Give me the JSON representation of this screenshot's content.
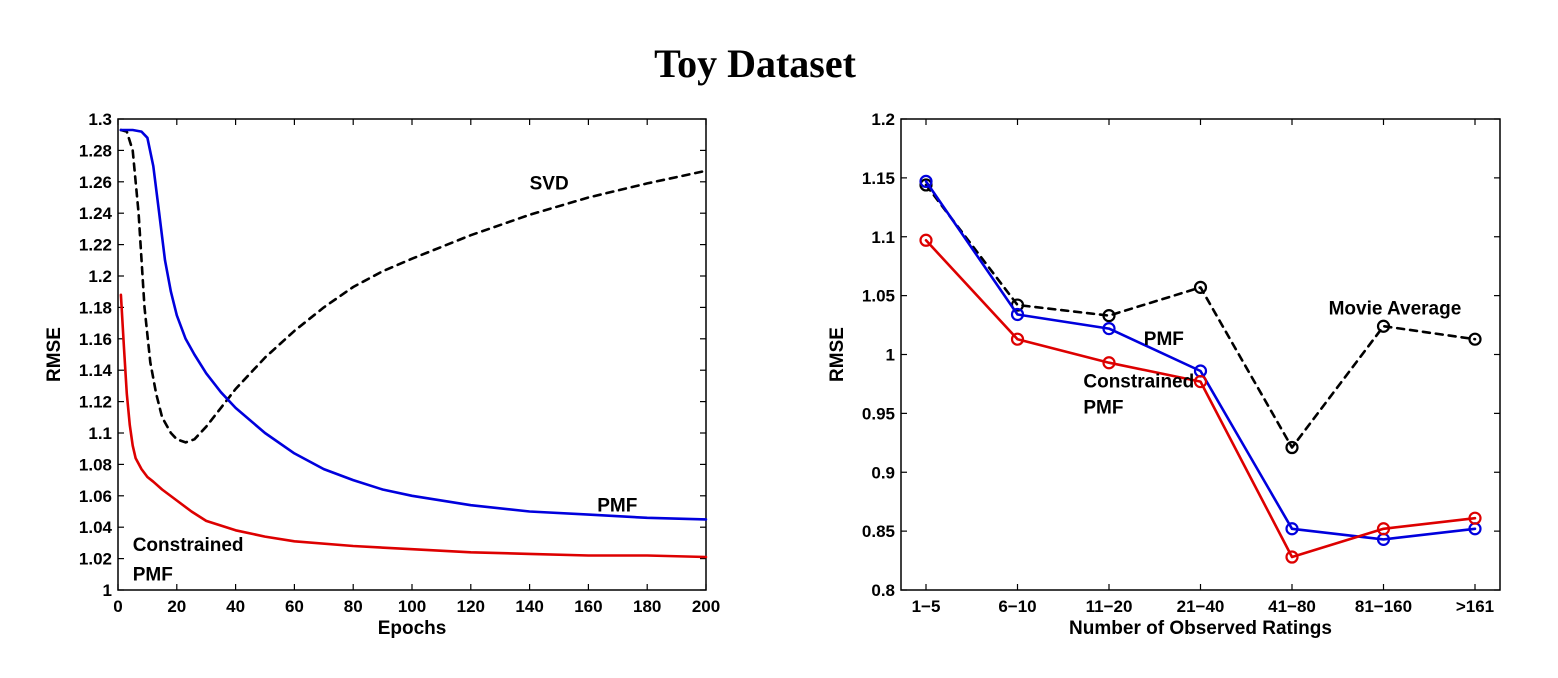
{
  "title": "Toy Dataset",
  "chart_data": [
    {
      "type": "line",
      "xlabel": "Epochs",
      "ylabel": "RMSE",
      "xlim": [
        0,
        200
      ],
      "ylim": [
        1,
        1.3
      ],
      "xticks": [
        0,
        20,
        40,
        60,
        80,
        100,
        120,
        140,
        160,
        180,
        200
      ],
      "yticks": [
        1,
        1.02,
        1.04,
        1.06,
        1.08,
        1.1,
        1.12,
        1.14,
        1.16,
        1.18,
        1.2,
        1.22,
        1.24,
        1.26,
        1.28,
        1.3
      ],
      "grid": false,
      "series": [
        {
          "name": "SVD",
          "color": "#000000",
          "dash": "dashed",
          "x": [
            1,
            3,
            5,
            7,
            9,
            11,
            13,
            15,
            18,
            20,
            23,
            26,
            30,
            35,
            40,
            50,
            60,
            70,
            80,
            90,
            100,
            120,
            140,
            160,
            180,
            200
          ],
          "y": [
            1.293,
            1.292,
            1.28,
            1.24,
            1.18,
            1.145,
            1.125,
            1.11,
            1.1,
            1.096,
            1.094,
            1.096,
            1.104,
            1.116,
            1.128,
            1.148,
            1.165,
            1.18,
            1.193,
            1.203,
            1.211,
            1.226,
            1.239,
            1.25,
            1.259,
            1.267
          ]
        },
        {
          "name": "PMF",
          "color": "#0000dd",
          "dash": "solid",
          "x": [
            1,
            5,
            8,
            10,
            12,
            14,
            16,
            18,
            20,
            23,
            26,
            30,
            35,
            40,
            50,
            60,
            70,
            80,
            90,
            100,
            120,
            140,
            160,
            180,
            200
          ],
          "y": [
            1.293,
            1.293,
            1.292,
            1.288,
            1.27,
            1.24,
            1.21,
            1.19,
            1.175,
            1.16,
            1.15,
            1.138,
            1.126,
            1.116,
            1.1,
            1.087,
            1.077,
            1.07,
            1.064,
            1.06,
            1.054,
            1.05,
            1.048,
            1.046,
            1.045
          ]
        },
        {
          "name": "Constrained PMF",
          "color": "#dd0000",
          "dash": "solid",
          "x": [
            1,
            2,
            3,
            4,
            5,
            6,
            8,
            10,
            12,
            15,
            20,
            25,
            30,
            40,
            50,
            60,
            80,
            100,
            120,
            140,
            160,
            180,
            200
          ],
          "y": [
            1.188,
            1.155,
            1.125,
            1.105,
            1.092,
            1.084,
            1.077,
            1.072,
            1.069,
            1.064,
            1.057,
            1.05,
            1.044,
            1.038,
            1.034,
            1.031,
            1.028,
            1.026,
            1.024,
            1.023,
            1.022,
            1.022,
            1.021
          ]
        }
      ],
      "annotations": [
        {
          "text": "SVD",
          "x": 140,
          "y": 1.255
        },
        {
          "text": "PMF",
          "x": 163,
          "y": 1.05
        },
        {
          "text": "Constrained",
          "x": 5,
          "y": 1.025
        },
        {
          "text": "PMF",
          "x": 5,
          "y": 1.006
        }
      ]
    },
    {
      "type": "line",
      "xlabel": "Number of Observed Ratings",
      "ylabel": "RMSE",
      "categories": [
        "1−5",
        "6−10",
        "11−20",
        "21−40",
        "41−80",
        "81−160",
        ">161"
      ],
      "ylim": [
        0.8,
        1.2
      ],
      "yticks": [
        0.8,
        0.85,
        0.9,
        0.95,
        1,
        1.05,
        1.1,
        1.15,
        1.2
      ],
      "grid": false,
      "series": [
        {
          "name": "Movie Average",
          "color": "#000000",
          "dash": "dashed",
          "marker": "circle",
          "values": [
            1.144,
            1.042,
            1.033,
            1.057,
            0.921,
            1.024,
            1.013
          ]
        },
        {
          "name": "PMF",
          "color": "#0000dd",
          "dash": "solid",
          "marker": "circle",
          "values": [
            1.147,
            1.034,
            1.022,
            0.986,
            0.852,
            0.843,
            0.852
          ]
        },
        {
          "name": "Constrained PMF",
          "color": "#dd0000",
          "dash": "solid",
          "marker": "circle",
          "values": [
            1.097,
            1.013,
            0.993,
            0.977,
            0.828,
            0.852,
            0.861
          ]
        }
      ],
      "annotations": [
        {
          "text": "Movie Average",
          "x": 4.4,
          "y": 1.034
        },
        {
          "text": "PMF",
          "x": 2.38,
          "y": 1.008
        },
        {
          "text": "Constrained",
          "x": 1.72,
          "y": 0.972
        },
        {
          "text": "PMF",
          "x": 1.72,
          "y": 0.95
        }
      ]
    }
  ]
}
